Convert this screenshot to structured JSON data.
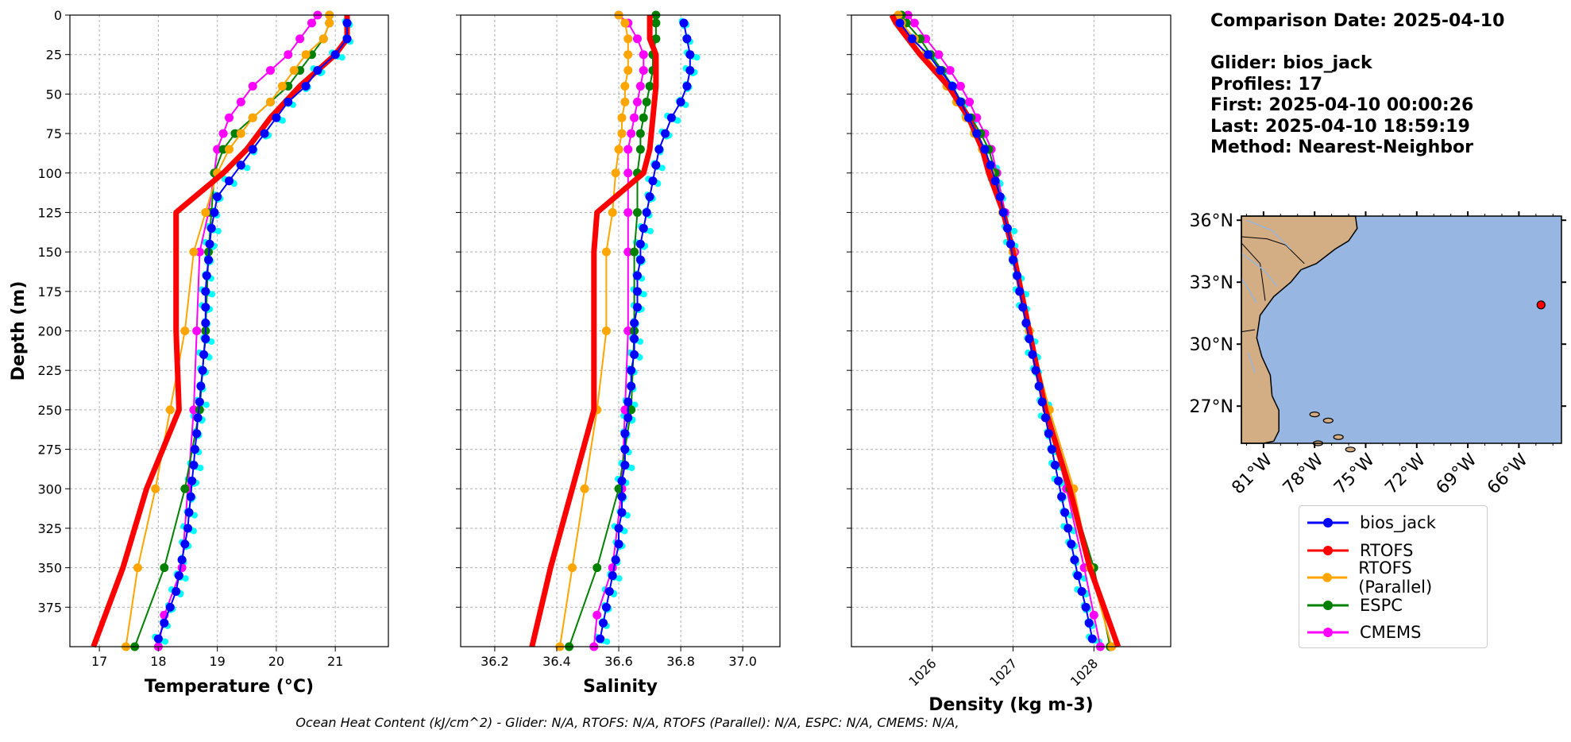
{
  "info": {
    "comparison_date": "Comparison Date: 2025-04-10",
    "glider": "Glider: bios_jack",
    "profiles": "Profiles: 17",
    "first": "First: 2025-04-10 00:00:26",
    "last": "Last: 2025-04-10 18:59:19",
    "method": "Method: Nearest-Neighbor"
  },
  "footer": "Ocean Heat Content (kJ/cm^2) - Glider: N/A,  RTOFS: N/A,  RTOFS (Parallel): N/A,  ESPC: N/A,  CMEMS: N/A,",
  "colors": {
    "bios_jack": "#0000ff",
    "glider_profiles": "#00ffff",
    "RTOFS": "#ff0000",
    "RTOFS (Parallel)": "#ffa500",
    "ESPC": "#008000",
    "CMEMS": "#ff00ff",
    "ocean": "#98b6e2",
    "land": "#d3ae84"
  },
  "legend": [
    "bios_jack",
    "RTOFS",
    "RTOFS (Parallel)",
    "ESPC",
    "CMEMS"
  ],
  "chart_data": [
    {
      "type": "line",
      "xlabel": "Temperature (°C)",
      "ylabel": "Depth (m)",
      "xlim": [
        16.5,
        21.9
      ],
      "ylim": [
        400,
        0
      ],
      "xticks": [
        17,
        18,
        19,
        20,
        21
      ],
      "yticks": [
        0,
        25,
        50,
        75,
        100,
        125,
        150,
        175,
        200,
        225,
        250,
        275,
        300,
        325,
        350,
        375
      ],
      "grid": true,
      "series": [
        {
          "name": "bios_jack",
          "depth": [
            5,
            15,
            25,
            35,
            45,
            55,
            65,
            75,
            85,
            95,
            105,
            115,
            125,
            135,
            145,
            155,
            165,
            175,
            185,
            195,
            205,
            215,
            225,
            235,
            245,
            255,
            265,
            275,
            285,
            295,
            305,
            315,
            325,
            335,
            345,
            355,
            365,
            375,
            385,
            395
          ],
          "values": [
            21.2,
            21.2,
            21.0,
            20.7,
            20.5,
            20.2,
            20.0,
            19.8,
            19.6,
            19.4,
            19.2,
            19.0,
            18.95,
            18.9,
            18.87,
            18.85,
            18.82,
            18.8,
            18.8,
            18.8,
            18.8,
            18.77,
            18.75,
            18.72,
            18.7,
            18.67,
            18.65,
            18.62,
            18.6,
            18.57,
            18.55,
            18.52,
            18.5,
            18.45,
            18.4,
            18.35,
            18.3,
            18.2,
            18.1,
            18.0
          ]
        },
        {
          "name": "RTOFS",
          "depth": [
            0,
            5,
            15,
            25,
            45,
            65,
            85,
            100,
            125,
            150,
            200,
            250,
            300,
            350,
            400
          ],
          "values": [
            21.2,
            21.2,
            21.2,
            21.0,
            20.4,
            19.9,
            19.5,
            19.1,
            18.3,
            18.3,
            18.3,
            18.35,
            17.8,
            17.4,
            16.9
          ]
        },
        {
          "name": "RTOFS (Parallel)",
          "depth": [
            0,
            5,
            15,
            25,
            35,
            45,
            55,
            65,
            75,
            85,
            100,
            125,
            150,
            200,
            250,
            300,
            350,
            400
          ],
          "values": [
            20.9,
            20.9,
            20.8,
            20.5,
            20.3,
            20.1,
            19.9,
            19.6,
            19.4,
            19.2,
            19.0,
            18.8,
            18.6,
            18.45,
            18.2,
            17.95,
            17.65,
            17.45
          ]
        },
        {
          "name": "ESPC",
          "depth": [
            0,
            5,
            15,
            25,
            35,
            45,
            55,
            65,
            75,
            85,
            100,
            125,
            150,
            200,
            250,
            300,
            350,
            400
          ],
          "values": [
            20.9,
            20.9,
            20.8,
            20.6,
            20.4,
            20.2,
            19.9,
            19.6,
            19.3,
            19.1,
            18.95,
            18.9,
            18.85,
            18.8,
            18.7,
            18.45,
            18.1,
            17.6
          ]
        },
        {
          "name": "CMEMS",
          "depth": [
            0,
            5,
            15,
            25,
            35,
            45,
            55,
            65,
            75,
            85,
            100,
            125,
            150,
            200,
            250,
            300,
            350,
            380,
            400
          ],
          "values": [
            20.7,
            20.6,
            20.4,
            20.2,
            19.9,
            19.6,
            19.4,
            19.2,
            19.1,
            19.0,
            18.95,
            18.85,
            18.7,
            18.65,
            18.6,
            18.5,
            18.4,
            18.1,
            18.0
          ]
        }
      ]
    },
    {
      "type": "line",
      "xlabel": "Salinity",
      "ylim": [
        400,
        0
      ],
      "xlim": [
        36.09,
        37.12
      ],
      "xticks": [
        36.2,
        36.4,
        36.6,
        36.8,
        37.0
      ],
      "grid": true,
      "series": [
        {
          "name": "bios_jack",
          "depth": [
            5,
            15,
            25,
            35,
            45,
            55,
            65,
            75,
            85,
            95,
            105,
            115,
            125,
            135,
            145,
            155,
            165,
            175,
            185,
            195,
            205,
            215,
            225,
            235,
            245,
            255,
            265,
            275,
            285,
            295,
            305,
            315,
            325,
            335,
            345,
            355,
            365,
            375,
            385,
            395
          ],
          "values": [
            36.81,
            36.82,
            36.83,
            36.83,
            36.82,
            36.8,
            36.77,
            36.75,
            36.73,
            36.72,
            36.71,
            36.7,
            36.69,
            36.68,
            36.67,
            36.67,
            36.66,
            36.66,
            36.66,
            36.65,
            36.65,
            36.65,
            36.64,
            36.64,
            36.63,
            36.63,
            36.62,
            36.62,
            36.62,
            36.61,
            36.61,
            36.61,
            36.6,
            36.6,
            36.59,
            36.58,
            36.57,
            36.56,
            36.55,
            36.54
          ]
        },
        {
          "name": "RTOFS",
          "depth": [
            0,
            5,
            15,
            25,
            45,
            65,
            85,
            100,
            125,
            150,
            200,
            250,
            300,
            350,
            400
          ],
          "values": [
            36.7,
            36.7,
            36.7,
            36.72,
            36.72,
            36.71,
            36.7,
            36.68,
            36.53,
            36.52,
            36.52,
            36.52,
            36.45,
            36.38,
            36.32
          ]
        },
        {
          "name": "RTOFS (Parallel)",
          "depth": [
            0,
            5,
            15,
            25,
            35,
            45,
            55,
            65,
            75,
            85,
            100,
            125,
            150,
            200,
            250,
            300,
            350,
            400
          ],
          "values": [
            36.6,
            36.62,
            36.63,
            36.63,
            36.63,
            36.62,
            36.62,
            36.61,
            36.61,
            36.6,
            36.59,
            36.58,
            36.56,
            36.56,
            36.53,
            36.49,
            36.45,
            36.41
          ]
        },
        {
          "name": "ESPC",
          "depth": [
            0,
            5,
            15,
            25,
            35,
            45,
            55,
            65,
            75,
            85,
            100,
            125,
            150,
            200,
            250,
            300,
            350,
            400
          ],
          "values": [
            36.72,
            36.72,
            36.72,
            36.71,
            36.71,
            36.7,
            36.69,
            36.68,
            36.67,
            36.67,
            36.66,
            36.66,
            36.65,
            36.65,
            36.64,
            36.6,
            36.53,
            36.44
          ]
        },
        {
          "name": "CMEMS",
          "depth": [
            0,
            5,
            15,
            25,
            35,
            45,
            55,
            65,
            75,
            85,
            100,
            125,
            150,
            200,
            250,
            300,
            350,
            380,
            400
          ],
          "values": [
            36.6,
            36.63,
            36.66,
            36.68,
            36.68,
            36.67,
            36.66,
            36.65,
            36.64,
            36.63,
            36.63,
            36.63,
            36.63,
            36.63,
            36.62,
            36.61,
            36.58,
            36.53,
            36.52
          ]
        }
      ]
    },
    {
      "type": "line",
      "xlabel": "Density (kg m-3)",
      "ylim": [
        400,
        0
      ],
      "xlim": [
        1025.0,
        1028.95
      ],
      "xticks": [
        1026,
        1027,
        1028
      ],
      "grid": true,
      "series": [
        {
          "name": "bios_jack",
          "depth": [
            5,
            15,
            25,
            35,
            45,
            55,
            65,
            75,
            85,
            95,
            105,
            115,
            125,
            135,
            145,
            155,
            165,
            175,
            185,
            195,
            205,
            215,
            225,
            235,
            245,
            255,
            265,
            275,
            285,
            295,
            305,
            315,
            325,
            335,
            345,
            355,
            365,
            375,
            385,
            395
          ],
          "values": [
            1025.6,
            1025.75,
            1025.95,
            1026.1,
            1026.25,
            1026.35,
            1026.45,
            1026.55,
            1026.65,
            1026.72,
            1026.78,
            1026.84,
            1026.88,
            1026.93,
            1026.97,
            1027.0,
            1027.05,
            1027.08,
            1027.12,
            1027.16,
            1027.2,
            1027.24,
            1027.28,
            1027.32,
            1027.36,
            1027.4,
            1027.44,
            1027.48,
            1027.52,
            1027.56,
            1027.6,
            1027.64,
            1027.68,
            1027.72,
            1027.76,
            1027.8,
            1027.85,
            1027.9,
            1027.94,
            1027.98
          ]
        },
        {
          "name": "RTOFS",
          "depth": [
            0,
            5,
            15,
            25,
            45,
            65,
            85,
            100,
            125,
            150,
            200,
            250,
            300,
            350,
            400
          ],
          "values": [
            1025.5,
            1025.55,
            1025.7,
            1025.85,
            1026.2,
            1026.45,
            1026.62,
            1026.7,
            1026.88,
            1027.0,
            1027.2,
            1027.4,
            1027.7,
            1027.95,
            1028.3
          ]
        },
        {
          "name": "RTOFS (Parallel)",
          "depth": [
            0,
            5,
            15,
            25,
            35,
            45,
            55,
            65,
            75,
            85,
            100,
            125,
            150,
            200,
            250,
            300,
            350,
            400
          ],
          "values": [
            1025.58,
            1025.62,
            1025.78,
            1025.92,
            1026.05,
            1026.18,
            1026.3,
            1026.42,
            1026.52,
            1026.62,
            1026.72,
            1026.87,
            1027.0,
            1027.2,
            1027.45,
            1027.75,
            1027.95,
            1028.22
          ]
        },
        {
          "name": "ESPC",
          "depth": [
            0,
            5,
            15,
            25,
            35,
            45,
            55,
            65,
            75,
            85,
            100,
            125,
            150,
            200,
            250,
            300,
            350,
            400
          ],
          "values": [
            1025.62,
            1025.68,
            1025.85,
            1025.98,
            1026.12,
            1026.25,
            1026.36,
            1026.48,
            1026.6,
            1026.7,
            1026.78,
            1026.88,
            1027.0,
            1027.2,
            1027.42,
            1027.7,
            1028.0,
            1028.2
          ]
        },
        {
          "name": "CMEMS",
          "depth": [
            0,
            5,
            15,
            25,
            35,
            45,
            55,
            65,
            75,
            85,
            100,
            125,
            150,
            200,
            250,
            300,
            350,
            380,
            400
          ],
          "values": [
            1025.7,
            1025.78,
            1025.92,
            1026.08,
            1026.22,
            1026.35,
            1026.46,
            1026.55,
            1026.65,
            1026.73,
            1026.8,
            1026.9,
            1027.02,
            1027.2,
            1027.42,
            1027.66,
            1027.88,
            1028.0,
            1028.08
          ]
        }
      ]
    }
  ],
  "map": {
    "lat_ticks": [
      "36°N",
      "33°N",
      "30°N",
      "27°N"
    ],
    "lon_ticks": [
      "81°W",
      "78°W",
      "75°W",
      "72°W",
      "69°W",
      "66°W"
    ],
    "glider_position": {
      "lon": -64.7,
      "lat": 31.9
    }
  }
}
